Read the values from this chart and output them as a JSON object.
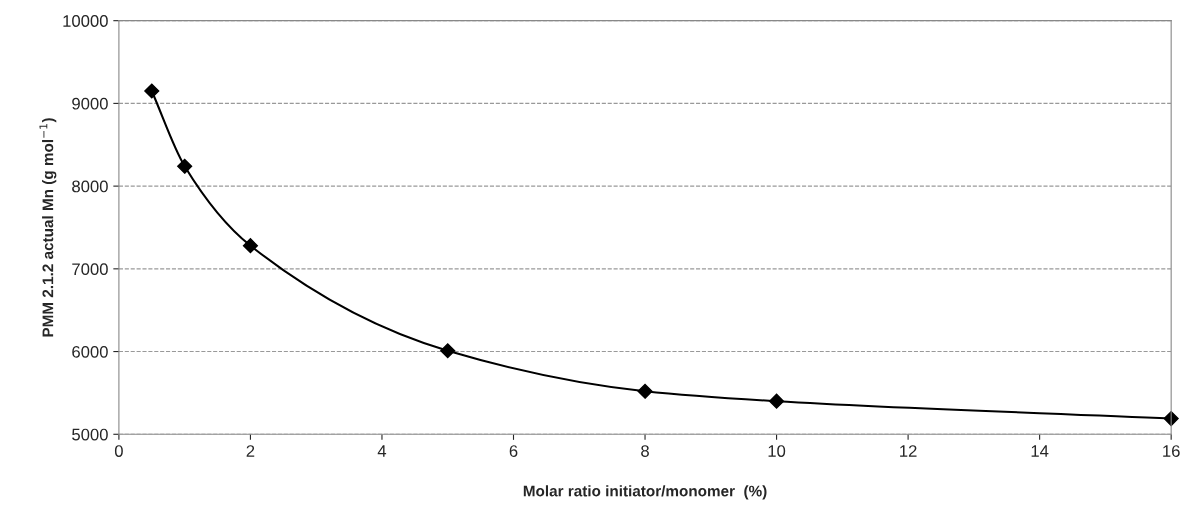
{
  "chart_data": {
    "type": "line",
    "xlabel": "Molar ratio initiator/monomer  (%)",
    "ylabel": "PMM 2.1.2 actual Mn (g mol$^{−1}$)",
    "x": [
      0.5,
      1,
      2,
      5,
      8,
      10,
      16
    ],
    "series": [
      {
        "color": "#000000",
        "values": [
          9150,
          8240,
          7280,
          6010,
          5520,
          5400,
          5190
        ]
      }
    ],
    "xlim": [
      0,
      16
    ],
    "xticks": [
      0,
      2,
      4,
      6,
      8,
      10,
      12,
      14,
      16
    ],
    "ylim": [
      5000,
      10000
    ],
    "yticks": [
      5000,
      6000,
      7000,
      8000,
      9000,
      10000
    ],
    "grid": "y",
    "marker": "diamond",
    "line_style": "solid"
  }
}
